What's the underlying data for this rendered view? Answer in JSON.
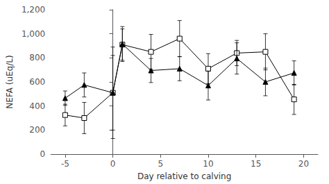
{
  "chart_data": {
    "type": "line",
    "xlabel": "Day relative to calving",
    "ylabel": "NEFA (uEq/L)",
    "x": [
      -5,
      -3,
      0,
      1,
      4,
      7,
      10,
      13,
      16,
      19
    ],
    "series": [
      {
        "marker": "open_square",
        "color": "#000000",
        "values": [
          325,
          300,
          510,
          910,
          850,
          960,
          710,
          840,
          850,
          455
        ],
        "errors": [
          90,
          130,
          380,
          130,
          145,
          150,
          125,
          105,
          150,
          125
        ]
      },
      {
        "marker": "triangle",
        "color": "#000000",
        "values": [
          465,
          575,
          510,
          915,
          695,
          710,
          570,
          795,
          600,
          675
        ],
        "errors": [
          60,
          100,
          310,
          145,
          100,
          100,
          120,
          130,
          115,
          100
        ]
      }
    ],
    "xlim": [
      -6.5,
      21.5
    ],
    "xticks": [
      -5,
      0,
      5,
      10,
      15,
      20
    ],
    "ylim": [
      0,
      1200
    ],
    "yticks": [
      0,
      200,
      400,
      600,
      800,
      1000,
      1200
    ],
    "grid": false
  }
}
